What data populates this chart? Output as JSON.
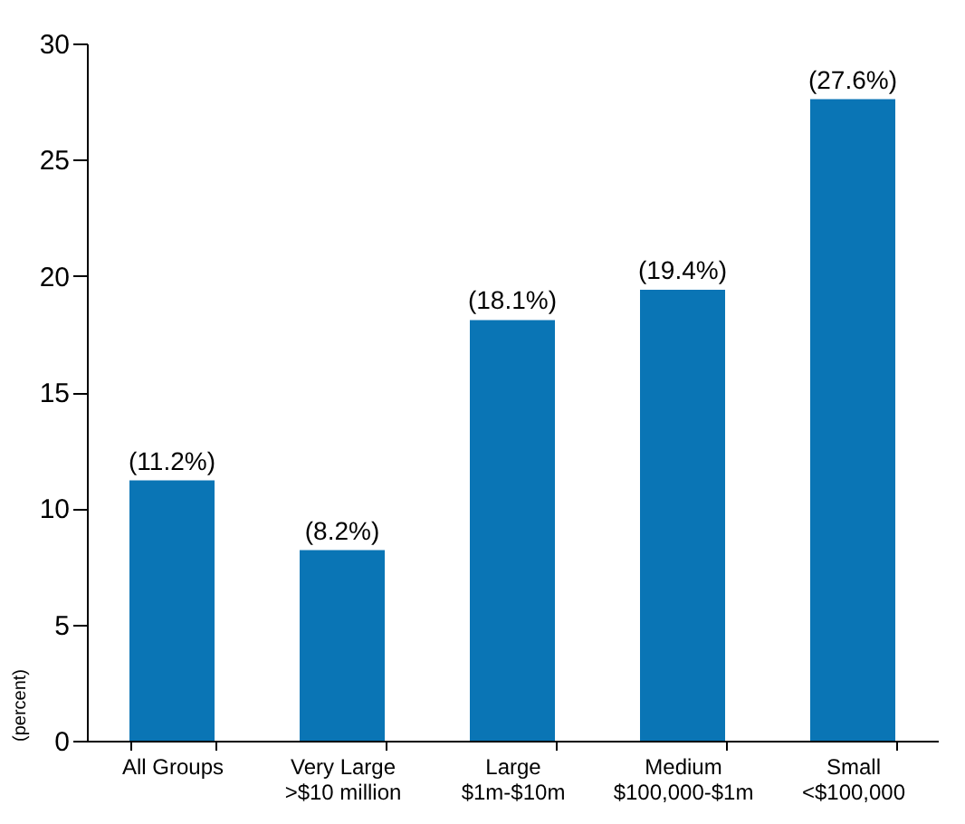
{
  "chart_data": {
    "type": "bar",
    "ylabel": "(percent)",
    "categories": [
      "All Groups",
      "Very Large\n>$10 million",
      "Large\n$1m-$10m",
      "Medium\n$100,000-$1m",
      "Small\n<$100,000"
    ],
    "values": [
      11.2,
      8.2,
      18.1,
      19.4,
      27.6
    ],
    "value_labels": [
      "(11.2%)",
      "(8.2%)",
      "(18.1%)",
      "(19.4%)",
      "(27.6%)"
    ],
    "color": "#0a75b5",
    "ylim": [
      0,
      30
    ],
    "yticks": [
      0,
      5,
      10,
      15,
      20,
      25,
      30
    ],
    "grid": false
  }
}
